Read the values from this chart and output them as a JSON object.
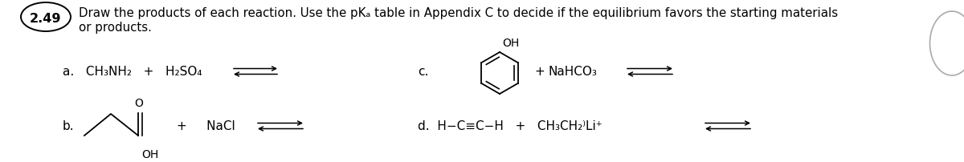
{
  "bg_color": "#ffffff",
  "fig_width": 12.0,
  "fig_height": 2.03,
  "dpi": 100,
  "text_color": "#000000",
  "fontsize_reaction": 11.0,
  "title_number": "2.49",
  "title_line1": "Draw the products of each reaction. Use the pKₐ table in Appendix C to decide if the equilibrium favors the starting materials",
  "title_line2": "or products.",
  "reaction_a": "a.   CH₃NH₂   +   H₂SO₄",
  "reaction_d": "d.  H−C≡C−H   +   CH₃CH₂⁾Li⁺",
  "nacl_text": "+     NaCl",
  "nahco3_text": "+   NaHCO₃",
  "plus_c": "+",
  "c_label": "c.",
  "b_label": "b."
}
